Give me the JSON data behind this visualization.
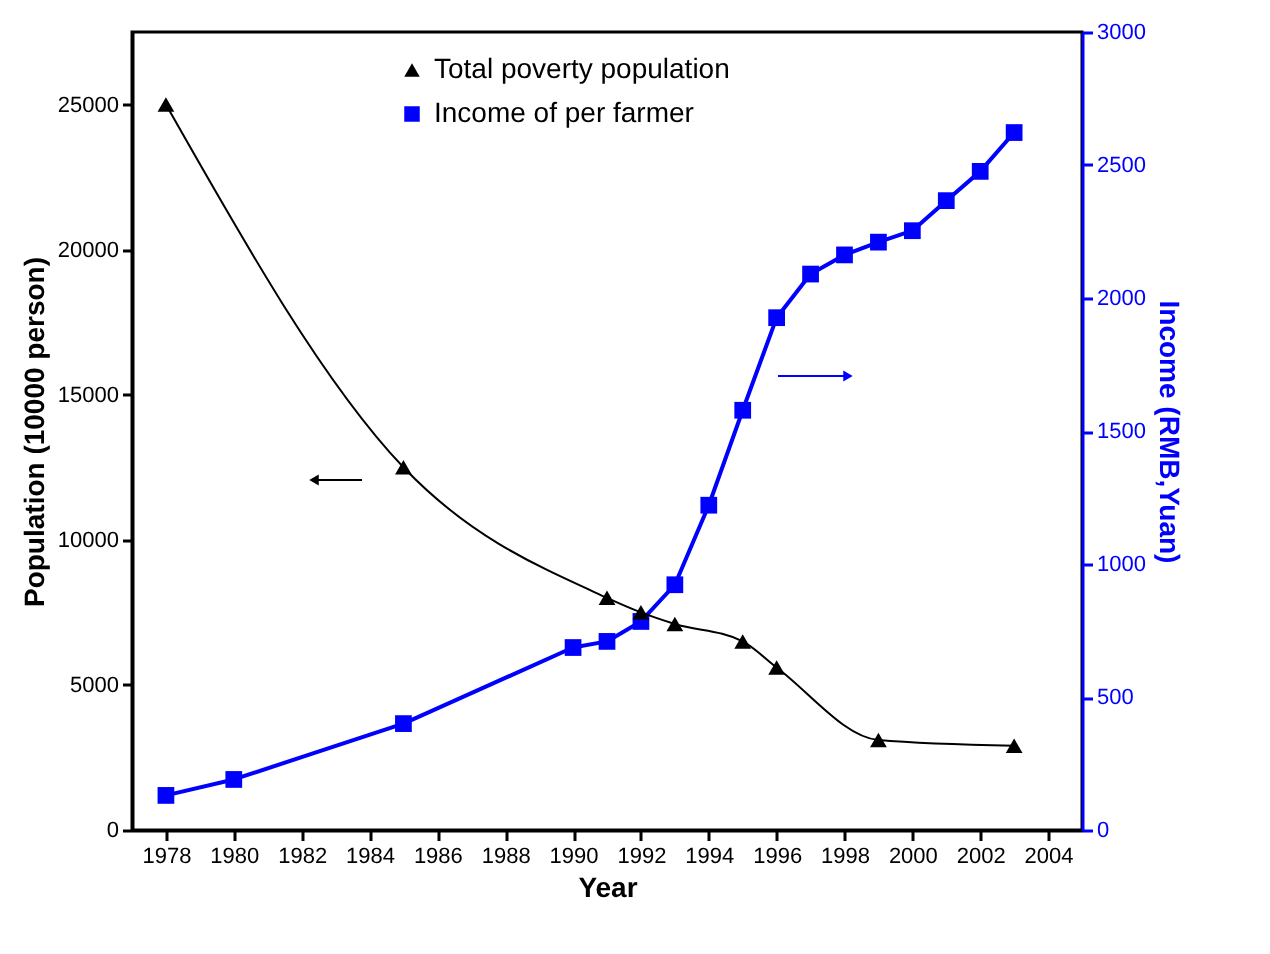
{
  "chart_data": {
    "type": "line",
    "xlabel": "Year",
    "ylabel": "Population (10000 person)",
    "y2label": "Income (RMB,Yuan)",
    "xlim": [
      1977,
      2005
    ],
    "xticks": [
      1978,
      1980,
      1982,
      1984,
      1986,
      1988,
      1990,
      1992,
      1994,
      1996,
      1998,
      2000,
      2002,
      2004
    ],
    "ylim": [
      0,
      27500
    ],
    "yticks": [
      0,
      5000,
      10000,
      15000,
      20000,
      25000
    ],
    "y2lim": [
      0,
      3000
    ],
    "y2ticks": [
      0,
      500,
      1000,
      1500,
      2000,
      2500,
      3000
    ],
    "legend": "top",
    "grid": false,
    "series": [
      {
        "name": "Total poverty population",
        "color": "#000000",
        "marker": "triangle",
        "line_style": "solid",
        "x": [
          1978,
          1985,
          1991,
          1992,
          1993,
          1995,
          1996,
          1999,
          2003
        ],
        "values": [
          25000,
          12500,
          8000,
          7500,
          7100,
          6500,
          5600,
          3100,
          2900
        ]
      },
      {
        "name": "Income of per farmer",
        "color": "#0000ff",
        "marker": "square",
        "line_style": "solid",
        "axis": "y2",
        "x": [
          1978,
          1980,
          1985,
          1990,
          1991,
          1992,
          1993,
          1994,
          1995,
          1996,
          1997,
          1998,
          1999,
          2000,
          2001,
          2002,
          2003
        ],
        "values": [
          130,
          190,
          400,
          686,
          709,
          784,
          922,
          1221,
          1578,
          1926,
          2090,
          2162,
          2210,
          2253,
          2366,
          2476,
          2622
        ]
      }
    ]
  }
}
